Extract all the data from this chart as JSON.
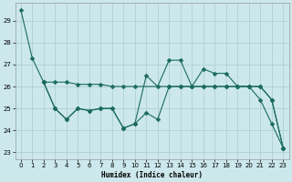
{
  "xlabel": "Humidex (Indice chaleur)",
  "bg_color": "#cce8ec",
  "grid_color": "#aacccc",
  "line_color": "#1a6b5a",
  "line1_x": [
    0,
    1,
    2,
    3,
    4,
    5,
    6,
    7,
    8,
    9,
    10,
    11,
    12,
    13,
    14,
    15,
    16,
    17,
    18,
    19,
    20,
    21,
    22,
    23
  ],
  "line1_y": [
    29.5,
    27.3,
    26.2,
    25.0,
    24.5,
    25.0,
    24.9,
    25.0,
    25.0,
    24.1,
    24.3,
    26.5,
    26.0,
    27.2,
    27.2,
    26.0,
    26.8,
    26.6,
    26.6,
    26.0,
    26.0,
    25.4,
    24.3,
    23.2
  ],
  "line2_x": [
    2,
    3,
    4,
    5,
    6,
    7,
    8,
    9,
    10,
    11,
    12,
    13,
    14,
    15,
    16,
    17,
    18,
    19,
    20,
    21,
    22,
    23
  ],
  "line2_y": [
    26.2,
    25.0,
    24.5,
    25.0,
    24.9,
    25.0,
    25.0,
    24.1,
    24.3,
    24.8,
    24.5,
    26.0,
    26.0,
    26.0,
    26.0,
    26.0,
    26.0,
    26.0,
    26.0,
    26.0,
    25.4,
    23.2
  ],
  "line3_x": [
    2,
    3,
    4,
    5,
    6,
    7,
    8,
    9,
    10,
    13,
    14,
    15,
    16,
    17,
    18,
    19,
    20,
    21,
    22,
    23
  ],
  "line3_y": [
    26.2,
    26.2,
    26.2,
    26.1,
    26.1,
    26.1,
    26.0,
    26.0,
    26.0,
    26.0,
    26.0,
    26.0,
    26.0,
    26.0,
    26.0,
    26.0,
    26.0,
    26.0,
    25.4,
    23.2
  ],
  "ylim": [
    22.7,
    29.8
  ],
  "yticks": [
    23,
    24,
    25,
    26,
    27,
    28,
    29
  ],
  "xticks": [
    0,
    1,
    2,
    3,
    4,
    5,
    6,
    7,
    8,
    9,
    10,
    11,
    12,
    13,
    14,
    15,
    16,
    17,
    18,
    19,
    20,
    21,
    22,
    23
  ],
  "markersize": 2.5
}
